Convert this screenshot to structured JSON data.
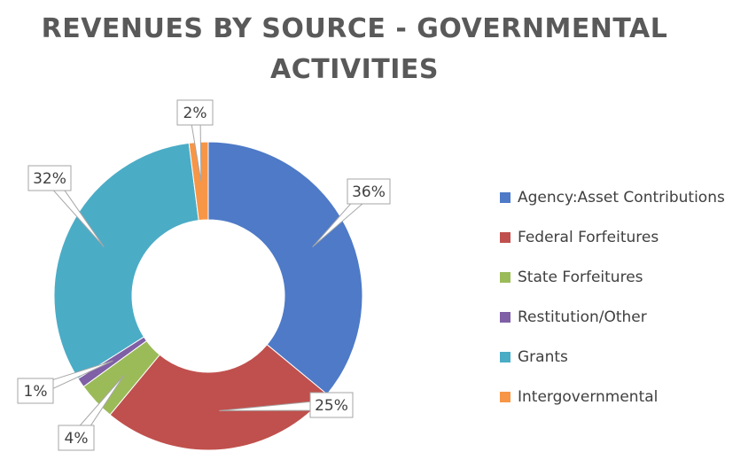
{
  "chart_data": {
    "type": "pie",
    "variant": "doughnut",
    "title_lines": [
      "REVENUES BY SOURCE - GOVERNMENTAL",
      "ACTIVITIES"
    ],
    "categories": [
      "Agency:Asset Contributions",
      "Federal Forfeitures",
      "State Forfeitures",
      "Restitution/Other",
      "Grants",
      "Intergovernmental"
    ],
    "values": [
      36,
      25,
      4,
      1,
      32,
      2
    ],
    "data_labels": [
      "36%",
      "25%",
      "4%",
      "1%",
      "32%",
      "2%"
    ],
    "colors": [
      "#4E7AC7",
      "#C0504D",
      "#9BBB59",
      "#7F5FA5",
      "#4BACC6",
      "#F79646"
    ],
    "legend_position": "right"
  }
}
